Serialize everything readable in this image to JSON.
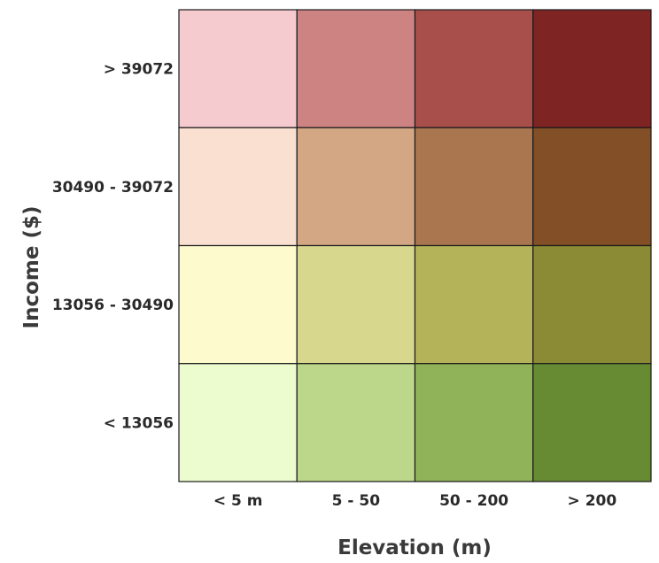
{
  "chart_data": {
    "type": "heatmap",
    "title": "",
    "xlabel": "Elevation (m)",
    "ylabel": "Income ($)",
    "x_categories": [
      "< 5 m",
      "5 - 50",
      "50 - 200",
      "> 200"
    ],
    "y_categories": [
      "> 39072",
      "30490 - 39072",
      "13056 - 30490",
      "< 13056"
    ],
    "cells": [
      [
        "#f6cbcf",
        "#cd8382",
        "#a84f4c",
        "#7e2423"
      ],
      [
        "#f9e0d1",
        "#d3a784",
        "#a9764f",
        "#824f27"
      ],
      [
        "#fdfbcd",
        "#d8d78e",
        "#b4b35a",
        "#8b8a35"
      ],
      [
        "#ecfcce",
        "#bcd78a",
        "#90b259",
        "#668b33"
      ]
    ],
    "legend": "none",
    "grid": true
  }
}
